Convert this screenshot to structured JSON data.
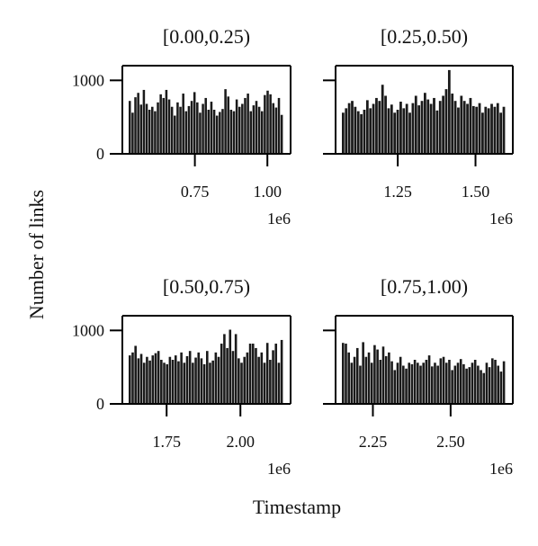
{
  "figure": {
    "ylabel": "Number of links",
    "xlabel": "Timestamp"
  },
  "chart_data": [
    {
      "type": "bar",
      "title": "[0.00,0.25)",
      "x_offset_label": "1e6",
      "xlim": [
        0.5,
        1.08
      ],
      "ylim": [
        0,
        1200
      ],
      "yticks": [
        0,
        1000
      ],
      "ytick_labels": [
        "0",
        "1000"
      ],
      "xticks": [
        0.75,
        1.0
      ],
      "xtick_labels": [
        "0.75",
        "1.00"
      ],
      "values": [
        720,
        560,
        770,
        830,
        670,
        870,
        680,
        600,
        640,
        580,
        700,
        810,
        760,
        870,
        740,
        640,
        520,
        700,
        640,
        820,
        580,
        650,
        720,
        840,
        700,
        560,
        680,
        760,
        600,
        710,
        600,
        520,
        570,
        610,
        880,
        780,
        600,
        580,
        740,
        640,
        680,
        760,
        820,
        580,
        660,
        720,
        640,
        580,
        800,
        860,
        810,
        690,
        630,
        760,
        530
      ]
    },
    {
      "type": "bar",
      "title": "[0.25,0.50)",
      "x_offset_label": "1e6",
      "xlim": [
        1.05,
        1.62
      ],
      "ylim": [
        0,
        1200
      ],
      "yticks": [
        0,
        1000
      ],
      "ytick_labels": [
        "",
        ""
      ],
      "xticks": [
        1.25,
        1.5
      ],
      "xtick_labels": [
        "1.25",
        "1.50"
      ],
      "values": [
        560,
        620,
        690,
        720,
        640,
        580,
        540,
        600,
        730,
        620,
        680,
        760,
        720,
        940,
        790,
        620,
        670,
        560,
        600,
        710,
        620,
        680,
        560,
        690,
        790,
        660,
        720,
        830,
        740,
        680,
        760,
        590,
        720,
        790,
        880,
        1140,
        820,
        720,
        630,
        790,
        720,
        680,
        760,
        650,
        640,
        690,
        560,
        640,
        620,
        680,
        640,
        690,
        560,
        640
      ]
    },
    {
      "type": "bar",
      "title": "[0.50,0.75)",
      "x_offset_label": "1e6",
      "xlim": [
        1.6,
        2.17
      ],
      "ylim": [
        0,
        1200
      ],
      "yticks": [
        0,
        1000
      ],
      "ytick_labels": [
        "0",
        "1000"
      ],
      "xticks": [
        1.75,
        2.0
      ],
      "xtick_labels": [
        "1.75",
        "2.00"
      ],
      "values": [
        660,
        700,
        790,
        620,
        680,
        560,
        640,
        590,
        660,
        690,
        720,
        600,
        560,
        540,
        640,
        600,
        660,
        580,
        700,
        560,
        650,
        720,
        560,
        630,
        700,
        620,
        540,
        720,
        560,
        590,
        700,
        640,
        820,
        950,
        760,
        1010,
        720,
        950,
        620,
        560,
        640,
        700,
        820,
        820,
        760,
        640,
        700,
        560,
        830,
        600,
        730,
        820,
        560,
        870
      ]
    },
    {
      "type": "bar",
      "title": "[0.75,1.00)",
      "x_offset_label": "1e6",
      "xlim": [
        2.13,
        2.7
      ],
      "ylim": [
        0,
        1200
      ],
      "yticks": [
        0,
        1000
      ],
      "ytick_labels": [
        "",
        ""
      ],
      "xticks": [
        2.25,
        2.5
      ],
      "xtick_labels": [
        "2.25",
        "2.50"
      ],
      "values": [
        830,
        820,
        700,
        560,
        640,
        760,
        520,
        840,
        640,
        700,
        560,
        800,
        740,
        600,
        780,
        650,
        700,
        580,
        460,
        560,
        640,
        520,
        480,
        560,
        540,
        600,
        560,
        520,
        560,
        600,
        660,
        510,
        560,
        520,
        620,
        640,
        560,
        600,
        460,
        520,
        560,
        610,
        540,
        480,
        500,
        560,
        600,
        520,
        460,
        420,
        560,
        500,
        620,
        600,
        520,
        440,
        580
      ]
    }
  ]
}
